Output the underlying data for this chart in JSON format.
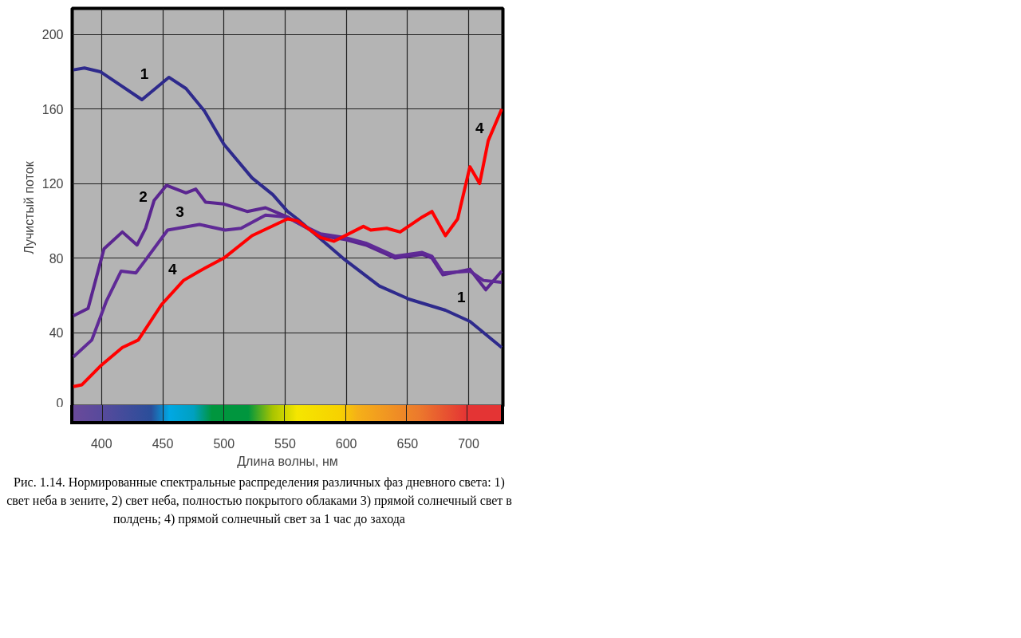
{
  "chart_data": {
    "type": "line",
    "xlabel": "Длина волны, нм",
    "ylabel": "Лучистый поток",
    "xlim": [
      376,
      728
    ],
    "ylim": [
      0,
      214
    ],
    "xticks": [
      400,
      450,
      500,
      550,
      600,
      650,
      700
    ],
    "yticks": [
      0,
      40,
      80,
      120,
      160,
      200
    ],
    "grid": true,
    "line_style": "solid",
    "series": [
      {
        "name": "1",
        "color": "#2e2a8c",
        "x": [
          377,
          386,
          399,
          415,
          433,
          455,
          469,
          484,
          500,
          523,
          540,
          552,
          560,
          599,
          627,
          651,
          681,
          701,
          727
        ],
        "values": [
          181,
          182,
          180,
          173,
          165,
          177,
          171,
          159,
          141,
          123,
          114,
          105,
          101,
          79,
          65,
          58,
          52,
          46,
          32
        ]
      },
      {
        "name": "2",
        "color": "#5a2590",
        "x": [
          377,
          389,
          402,
          417,
          429,
          436,
          443,
          453,
          469,
          477,
          485,
          500,
          519,
          534,
          552,
          560,
          579,
          599,
          616,
          640,
          662,
          670,
          679,
          701,
          714,
          727
        ],
        "values": [
          49,
          53,
          85,
          94,
          87,
          96,
          111,
          119,
          115,
          117,
          110,
          109,
          105,
          107,
          102,
          99,
          92,
          90,
          87,
          80,
          82,
          80,
          71,
          74,
          63,
          73
        ]
      },
      {
        "name": "3",
        "color": "#5f2a96",
        "x": [
          377,
          392,
          404,
          416,
          428,
          436,
          454,
          480,
          501,
          514,
          534,
          552,
          560,
          579,
          599,
          616,
          640,
          662,
          670,
          679,
          701,
          712,
          727
        ],
        "values": [
          27,
          36,
          57,
          73,
          72,
          79,
          95,
          98,
          95,
          96,
          103,
          102,
          99,
          93,
          91,
          88,
          81,
          83,
          81,
          72,
          73,
          68,
          67
        ]
      },
      {
        "name": "4",
        "color": "#ff0000",
        "x": [
          377,
          384,
          399,
          417,
          430,
          449,
          467,
          480,
          500,
          523,
          552,
          560,
          579,
          590,
          614,
          620,
          633,
          644,
          662,
          670,
          681,
          691,
          701,
          709,
          716,
          727
        ],
        "values": [
          11,
          12,
          22,
          32,
          36,
          55,
          68,
          73,
          80,
          92,
          101,
          100,
          91,
          89,
          97,
          95,
          96,
          94,
          102,
          105,
          92,
          101,
          129,
          120,
          143,
          160
        ]
      }
    ],
    "annotations": [
      "Рис. 1.14. Нормированные спектральные распределения различных фаз дневного света: 1) свет неба в зените, 2) свет неба, полностью покрытого облаками 3) прямой солнечный свет в полдень; 4) прямой солнечный свет за 1 час до захода"
    ]
  }
}
